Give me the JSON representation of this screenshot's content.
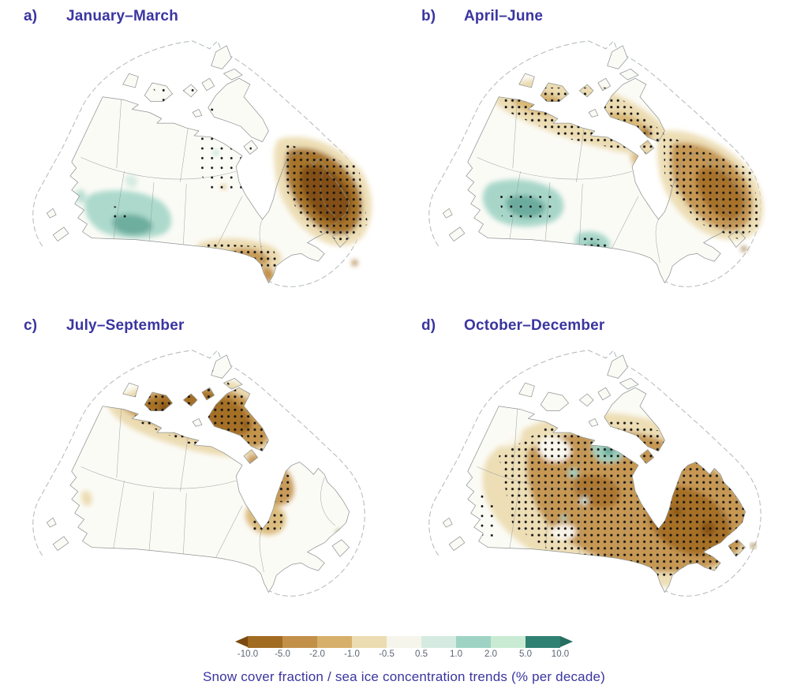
{
  "figure": {
    "background": "#ffffff",
    "title_color": "#3A35A0",
    "caption_color": "#3A35A0",
    "caption": "Snow cover fraction / sea ice concentration trends (% per decade)",
    "panels": [
      {
        "label": "a)",
        "title": "January–March"
      },
      {
        "label": "b)",
        "title": "April–June"
      },
      {
        "label": "c)",
        "title": "July–September"
      },
      {
        "label": "d)",
        "title": "October–December"
      }
    ]
  },
  "colorbar": {
    "tick_labels": [
      "-10.0",
      "-5.0",
      "-2.0",
      "-1.0",
      "-0.5",
      "0.5",
      "1.0",
      "2.0",
      "5.0",
      "10.0"
    ],
    "segment_colors": [
      "#A26B22",
      "#C29049",
      "#D6B06A",
      "#ECDCB2",
      "#F5F5EC",
      "#D5EBE1",
      "#9ED3C4",
      "#C9EBD3",
      "#2F8173"
    ],
    "left_arrow_color": "#7C4A0F",
    "right_arrow_color": "#256F62",
    "tick_label_color": "#5B6575"
  },
  "map_palette": {
    "land_fill": "#FBFBF6",
    "border_gray": "#8F9494",
    "dashed_boundary": "#B7BDBF",
    "stipple_dot": "#141414",
    "brown_deep": "#7C4A0F",
    "brown_dark": "#A26B22",
    "brown_mid": "#C29049",
    "brown_light": "#D6B06A",
    "tan_pale": "#ECDCB2",
    "teal_pale": "#D5EBE1",
    "teal_light": "#9ED3C4",
    "mint_pale": "#C9EBD3",
    "teal_dark": "#2F8173"
  },
  "chart_data": {
    "type": "heatmap",
    "title": "Seasonal snow cover fraction / sea ice concentration trends over Canada",
    "unit": "% per decade",
    "color_scale": {
      "levels": [
        -10,
        -5,
        -2,
        -1,
        -0.5,
        0.5,
        1,
        2,
        5,
        10
      ],
      "negative_colors": "browns (decreasing trends)",
      "positive_colors": "teals (increasing trends)",
      "stippling": "black dots over regions of significant trend",
      "arrow_ends": "open-ended beyond -10 and +10"
    },
    "panels": [
      {
        "label": "a)",
        "season": "January–March",
        "pattern": "mostly near zero; teal increases over southern British Columbia and the Prairies; strong stippled brown decreases over Labrador, eastern Quebec and the Labrador Sea; tan decreases along southern Ontario and Quebec"
      },
      {
        "label": "b)",
        "season": "April–June",
        "pattern": "widespread stippled tan-brown decreases across the northern mainland, Arctic Archipelago and eastern Canada; teal increases over central British Columbia, the Prairies and southern Manitoba"
      },
      {
        "label": "c)",
        "season": "July–September",
        "pattern": "strong stippled brown decreases across the Arctic Archipelago, Foxe Basin and northeastern Hudson Bay; southern Canada largely unchanged"
      },
      {
        "label": "d)",
        "season": "October–December",
        "pattern": "widespread strong stippled brown decreases over most of the country, darkest over Quebec and central Canada; small teal increases west and northwest of Hudson Bay"
      }
    ]
  }
}
